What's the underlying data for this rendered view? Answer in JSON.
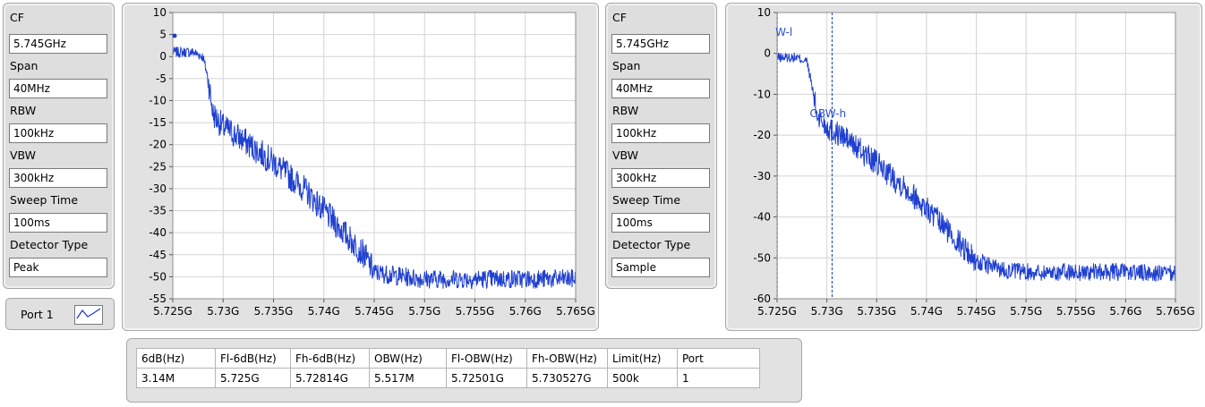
{
  "panels": [
    {
      "cf_label": "CF",
      "cf_value": "5.745GHz",
      "span_label": "Span",
      "span_value": "40MHz",
      "rbw_label": "RBW",
      "rbw_value": "100kHz",
      "vbw_label": "VBW",
      "vbw_value": "300kHz",
      "sweep_label": "Sweep Time",
      "sweep_value": "100ms",
      "detector_label": "Detector Type",
      "detector_value": "Peak"
    },
    {
      "cf_label": "CF",
      "cf_value": "5.745GHz",
      "span_label": "Span",
      "span_value": "40MHz",
      "rbw_label": "RBW",
      "rbw_value": "100kHz",
      "vbw_label": "VBW",
      "vbw_value": "300kHz",
      "sweep_label": "Sweep Time",
      "sweep_value": "100ms",
      "detector_label": "Detector Type",
      "detector_value": "Sample"
    }
  ],
  "port": {
    "label": "Port 1"
  },
  "results": {
    "headers": [
      "6dB(Hz)",
      "Fl-6dB(Hz)",
      "Fh-6dB(Hz)",
      "OBW(Hz)",
      "Fl-OBW(Hz)",
      "Fh-OBW(Hz)",
      "Limit(Hz)",
      "Port"
    ],
    "row": [
      "3.14M",
      "5.725G",
      "5.72814G",
      "5.517M",
      "5.72501G",
      "5.730527G",
      "500k",
      "1"
    ]
  },
  "colors": {
    "trace": "#1f3fd0",
    "cursor": "#2b4fcf",
    "panel": "#dedede"
  },
  "chart_data": [
    {
      "type": "line",
      "xlim": [
        5.725,
        5.765
      ],
      "ylim": [
        -55,
        10
      ],
      "grid": true,
      "x_ticks": [
        "5.725G",
        "5.73G",
        "5.735G",
        "5.74G",
        "5.745G",
        "5.75G",
        "5.755G",
        "5.76G",
        "5.765G"
      ],
      "y_ticks": [
        "10",
        "5",
        "0",
        "-5",
        "-10",
        "-15",
        "-20",
        "-25",
        "-30",
        "-35",
        "-40",
        "-45",
        "-50",
        "-55"
      ],
      "y_tick_values": [
        10,
        5,
        0,
        -5,
        -10,
        -15,
        -20,
        -25,
        -30,
        -35,
        -40,
        -45,
        -50,
        -55
      ],
      "series": [
        {
          "x": [
            5.725,
            5.727,
            5.728,
            5.7285,
            5.729,
            5.73,
            5.732,
            5.735,
            5.738,
            5.74,
            5.742,
            5.744,
            5.745,
            5.748,
            5.75,
            5.755,
            5.76,
            5.765
          ],
          "y": [
            1,
            1,
            0,
            -5,
            -13,
            -16,
            -19,
            -24,
            -30,
            -35,
            -40,
            -45,
            -49,
            -50,
            -50.5,
            -50.5,
            -50.5,
            -50.5
          ]
        }
      ]
    },
    {
      "type": "line",
      "xlim": [
        5.725,
        5.765
      ],
      "ylim": [
        -60,
        10
      ],
      "grid": true,
      "x_ticks": [
        "5.725G",
        "5.73G",
        "5.735G",
        "5.74G",
        "5.745G",
        "5.75G",
        "5.755G",
        "5.76G",
        "5.765G"
      ],
      "y_ticks": [
        "10",
        "0",
        "-10",
        "-20",
        "-30",
        "-40",
        "-50",
        "-60"
      ],
      "y_tick_values": [
        10,
        0,
        -10,
        -20,
        -30,
        -40,
        -50,
        -60
      ],
      "cursors": [
        {
          "label": "W-l",
          "x": 5.72501
        },
        {
          "label": "OBW-h",
          "x": 5.730527
        }
      ],
      "series": [
        {
          "x": [
            5.725,
            5.727,
            5.728,
            5.7285,
            5.729,
            5.73,
            5.732,
            5.735,
            5.738,
            5.74,
            5.742,
            5.744,
            5.745,
            5.748,
            5.75,
            5.755,
            5.76,
            5.765
          ],
          "y": [
            -1,
            -1,
            -2,
            -8,
            -15,
            -18,
            -21,
            -27,
            -33,
            -38,
            -43,
            -48,
            -51,
            -53,
            -53.5,
            -53.5,
            -53.5,
            -54
          ]
        }
      ]
    }
  ]
}
